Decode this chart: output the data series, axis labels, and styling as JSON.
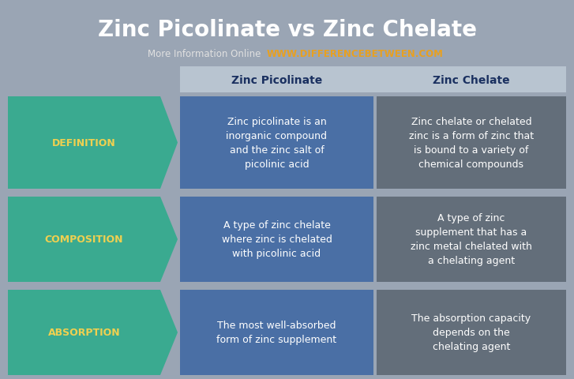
{
  "title": "Zinc Picolinate vs Zinc Chelate",
  "subtitle_plain": "More Information Online",
  "subtitle_bold": "WWW.DIFFERENCEBETWEEN.COM",
  "col1_header": "Zinc Picolinate",
  "col2_header": "Zinc Chelate",
  "rows": [
    {
      "label": "DEFINITION",
      "col1": "Zinc picolinate is an\ninorganic compound\nand the zinc salt of\npicolinic acid",
      "col2": "Zinc chelate or chelated\nzinc is a form of zinc that\nis bound to a variety of\nchemical compounds"
    },
    {
      "label": "COMPOSITION",
      "col1": "A type of zinc chelate\nwhere zinc is chelated\nwith picolinic acid",
      "col2": "A type of zinc\nsupplement that has a\nzinc metal chelated with\na chelating agent"
    },
    {
      "label": "ABSORPTION",
      "col1": "The most well-absorbed\nform of zinc supplement",
      "col2": "The absorption capacity\ndepends on the\nchelating agent"
    }
  ],
  "bg_color": "#9aa5b4",
  "header_bg": "#b8c4d0",
  "col1_cell_bg": "#4a6fa5",
  "col2_cell_bg": "#636e7a",
  "arrow_bg": "#3aaa90",
  "title_color": "#ffffff",
  "subtitle_plain_color": "#e0e0e0",
  "subtitle_bold_color": "#e8a020",
  "header_text_color": "#1a3060",
  "label_color": "#f0d050",
  "cell_text_color": "#ffffff",
  "figwidth": 7.27,
  "figheight": 4.81,
  "title_fontsize": 20,
  "subtitle_fontsize": 8.5,
  "header_fontsize": 10,
  "cell_fontsize": 9,
  "label_fontsize": 9
}
